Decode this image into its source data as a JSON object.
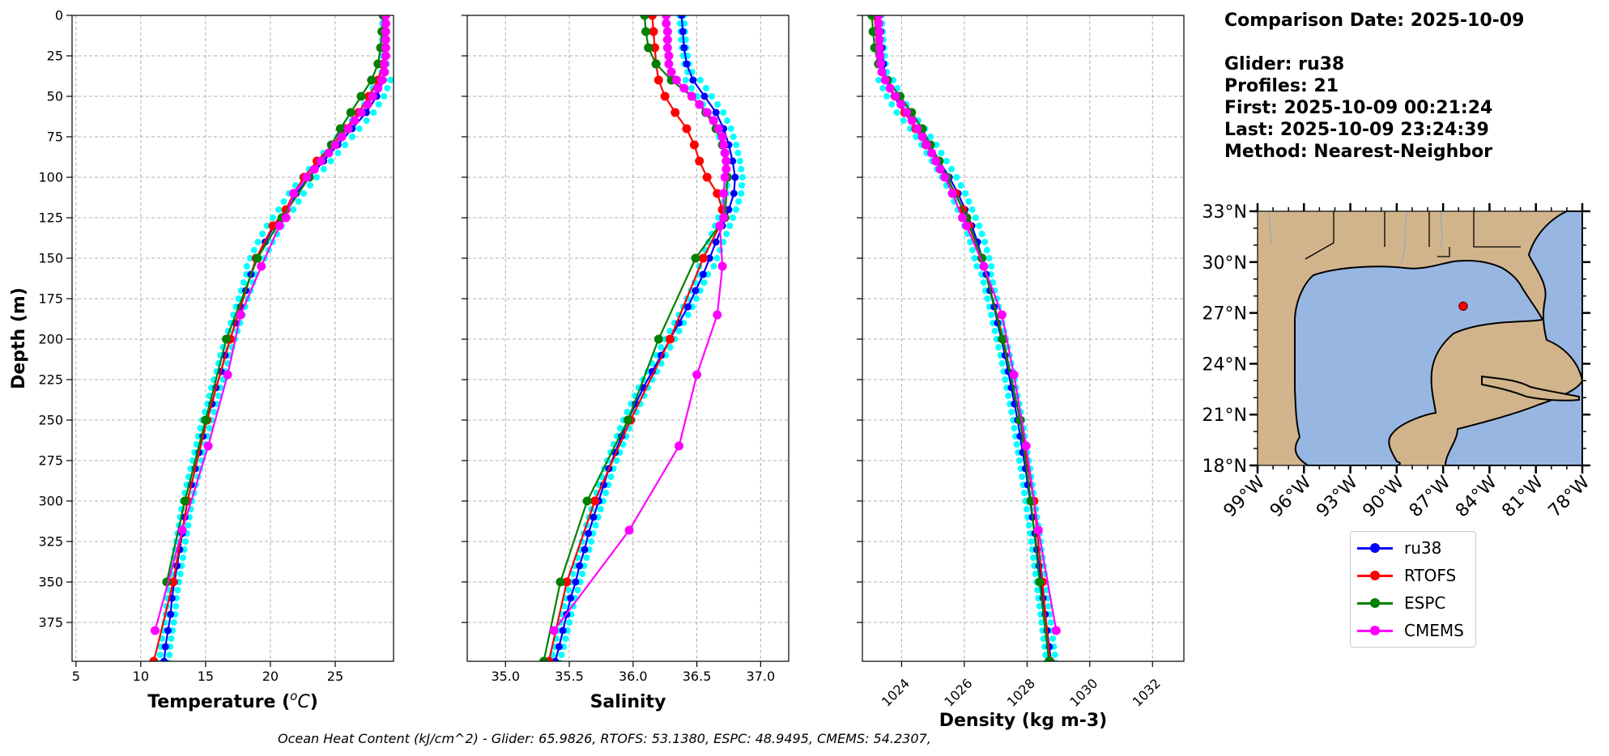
{
  "chart_data": [
    {
      "type": "line",
      "xlabel": "Temperature (",
      "xlabel_unit": "C",
      "xlabel_unit_super": "o",
      "xlabel_tail": ")",
      "ylabel": "Depth (m)",
      "xlim": [
        4.7,
        29.5
      ],
      "ylim": [
        399,
        0
      ],
      "xticks": [
        5,
        10,
        15,
        20,
        25
      ],
      "yticks": [
        0,
        25,
        50,
        75,
        100,
        125,
        150,
        175,
        200,
        225,
        250,
        275,
        300,
        325,
        350,
        375
      ],
      "grid": true,
      "series": [
        {
          "name": "ru38",
          "color": "#0000ff",
          "depth": [
            0,
            10,
            20,
            30,
            40,
            50,
            60,
            70,
            80,
            90,
            100,
            110,
            120,
            130,
            140,
            150,
            160,
            170,
            180,
            190,
            200,
            210,
            220,
            230,
            240,
            250,
            260,
            270,
            280,
            290,
            300,
            310,
            320,
            330,
            340,
            350,
            360,
            370,
            380,
            390,
            399
          ],
          "values": [
            28.8,
            28.8,
            28.8,
            28.8,
            28.7,
            28.2,
            27.4,
            26.3,
            25.2,
            24.1,
            23.0,
            22.0,
            21.2,
            20.3,
            19.6,
            19.0,
            18.5,
            18.1,
            17.7,
            17.3,
            16.9,
            16.5,
            16.2,
            15.8,
            15.5,
            15.1,
            14.8,
            14.5,
            14.2,
            13.9,
            13.6,
            13.4,
            13.2,
            13.0,
            12.8,
            12.6,
            12.4,
            12.3,
            12.1,
            11.9,
            11.8
          ]
        },
        {
          "name": "RTOFS",
          "color": "#ff0000",
          "depth": [
            0,
            10,
            20,
            30,
            40,
            50,
            60,
            70,
            80,
            90,
            100,
            110,
            120,
            130,
            150,
            200,
            250,
            300,
            350,
            399
          ],
          "values": [
            28.8,
            28.8,
            28.8,
            28.7,
            28.3,
            27.6,
            26.8,
            25.8,
            24.8,
            23.6,
            22.6,
            21.8,
            21.2,
            20.2,
            18.9,
            16.9,
            15.1,
            13.6,
            12.5,
            11.0
          ]
        },
        {
          "name": "ESPC",
          "color": "#008000",
          "depth": [
            0,
            10,
            20,
            30,
            40,
            50,
            60,
            70,
            80,
            90,
            100,
            125,
            150,
            200,
            250,
            300,
            350
          ],
          "values": [
            28.7,
            28.6,
            28.5,
            28.3,
            27.8,
            27.0,
            26.2,
            25.4,
            24.7,
            23.9,
            23.0,
            20.9,
            19.0,
            16.6,
            15.0,
            13.4,
            12.0
          ]
        },
        {
          "name": "CMEMS",
          "color": "#ff00ff",
          "depth": [
            0,
            5,
            10,
            15,
            20,
            25,
            30,
            35,
            40,
            45,
            50,
            55,
            60,
            65,
            70,
            75,
            80,
            85,
            90,
            95,
            100,
            110,
            125,
            130,
            155,
            185,
            222,
            266,
            318,
            380
          ],
          "values": [
            28.9,
            28.9,
            28.9,
            28.9,
            28.9,
            28.9,
            28.8,
            28.8,
            28.6,
            28.3,
            27.9,
            27.5,
            27.0,
            26.5,
            26.0,
            25.5,
            25.0,
            24.5,
            23.9,
            23.4,
            22.8,
            21.8,
            21.2,
            20.7,
            19.3,
            17.7,
            16.7,
            15.2,
            13.2,
            11.1
          ]
        }
      ]
    },
    {
      "type": "line",
      "xlabel": "Salinity",
      "xlim": [
        34.7,
        37.22
      ],
      "ylim": [
        399,
        0
      ],
      "xticks": [
        35.0,
        35.5,
        36.0,
        36.5,
        37.0
      ],
      "xtick_labels": [
        "35.0",
        "35.5",
        "36.0",
        "36.5",
        "37.0"
      ],
      "grid": true,
      "series": [
        {
          "name": "ru38",
          "color": "#0000ff",
          "depth": [
            0,
            10,
            20,
            30,
            40,
            50,
            60,
            70,
            80,
            90,
            100,
            110,
            120,
            130,
            140,
            150,
            160,
            170,
            180,
            190,
            200,
            210,
            220,
            230,
            240,
            250,
            260,
            270,
            280,
            290,
            300,
            310,
            320,
            330,
            340,
            350,
            360,
            370,
            380,
            390,
            399
          ],
          "values": [
            36.38,
            36.39,
            36.4,
            36.42,
            36.47,
            36.56,
            36.65,
            36.71,
            36.75,
            36.78,
            36.8,
            36.79,
            36.75,
            36.7,
            36.65,
            36.6,
            36.55,
            36.49,
            36.43,
            36.36,
            36.29,
            36.22,
            36.15,
            36.08,
            36.02,
            35.96,
            35.91,
            35.86,
            35.81,
            35.77,
            35.73,
            35.69,
            35.65,
            35.62,
            35.58,
            35.55,
            35.51,
            35.48,
            35.45,
            35.42,
            35.39
          ]
        },
        {
          "name": "RTOFS",
          "color": "#ff0000",
          "depth": [
            0,
            10,
            20,
            30,
            40,
            50,
            60,
            70,
            80,
            90,
            100,
            110,
            120,
            130,
            150,
            200,
            250,
            300,
            350,
            399
          ],
          "values": [
            36.15,
            36.16,
            36.17,
            36.18,
            36.2,
            36.25,
            36.33,
            36.42,
            36.48,
            36.52,
            36.58,
            36.66,
            36.7,
            36.68,
            36.55,
            36.29,
            35.98,
            35.7,
            35.48,
            35.34
          ]
        },
        {
          "name": "ESPC",
          "color": "#008000",
          "depth": [
            0,
            10,
            20,
            30,
            40,
            50,
            60,
            70,
            80,
            90,
            100,
            125,
            150,
            200,
            250,
            300,
            350,
            399
          ],
          "values": [
            36.09,
            36.1,
            36.12,
            36.18,
            36.3,
            36.46,
            36.57,
            36.65,
            36.7,
            36.73,
            36.74,
            36.72,
            36.49,
            36.2,
            35.96,
            35.64,
            35.43,
            35.3
          ]
        },
        {
          "name": "CMEMS",
          "color": "#ff00ff",
          "depth": [
            0,
            5,
            10,
            15,
            20,
            25,
            30,
            35,
            40,
            45,
            50,
            55,
            60,
            65,
            70,
            75,
            80,
            85,
            90,
            95,
            100,
            110,
            125,
            130,
            155,
            185,
            222,
            266,
            318,
            380
          ],
          "values": [
            36.26,
            36.26,
            36.27,
            36.27,
            36.27,
            36.28,
            36.28,
            36.3,
            36.34,
            36.4,
            36.46,
            36.52,
            36.58,
            36.63,
            36.67,
            36.7,
            36.71,
            36.72,
            36.73,
            36.73,
            36.72,
            36.71,
            36.71,
            36.68,
            36.7,
            36.66,
            36.5,
            36.36,
            35.97,
            35.38
          ]
        }
      ]
    },
    {
      "type": "line",
      "xlabel": "Density (kg m-3)",
      "xlim": [
        1022.75,
        1033.0
      ],
      "ylim": [
        399,
        0
      ],
      "xticks": [
        1024,
        1026,
        1028,
        1030,
        1032
      ],
      "xtick_labels": [
        "1024",
        "1026",
        "1028",
        "1030",
        "1032"
      ],
      "grid": true,
      "series": [
        {
          "name": "ru38",
          "color": "#0000ff",
          "depth": [
            0,
            10,
            20,
            30,
            40,
            50,
            60,
            70,
            80,
            90,
            100,
            110,
            120,
            130,
            140,
            150,
            160,
            170,
            180,
            190,
            200,
            210,
            220,
            230,
            240,
            250,
            260,
            270,
            280,
            290,
            300,
            310,
            320,
            330,
            340,
            350,
            360,
            370,
            380,
            390,
            399
          ],
          "values": [
            1023.29,
            1023.33,
            1023.37,
            1023.42,
            1023.5,
            1023.76,
            1024.08,
            1024.51,
            1024.87,
            1025.2,
            1025.52,
            1025.8,
            1026.02,
            1026.24,
            1026.42,
            1026.56,
            1026.7,
            1026.82,
            1026.95,
            1027.06,
            1027.18,
            1027.3,
            1027.4,
            1027.5,
            1027.6,
            1027.7,
            1027.78,
            1027.86,
            1027.95,
            1028.02,
            1028.1,
            1028.17,
            1028.25,
            1028.31,
            1028.38,
            1028.45,
            1028.51,
            1028.58,
            1028.64,
            1028.71,
            1028.76
          ]
        },
        {
          "name": "RTOFS",
          "color": "#ff0000",
          "depth": [
            0,
            10,
            20,
            30,
            40,
            50,
            60,
            70,
            80,
            90,
            100,
            110,
            120,
            130,
            150,
            200,
            250,
            300,
            350,
            399
          ],
          "values": [
            1023.14,
            1023.18,
            1023.22,
            1023.3,
            1023.5,
            1023.8,
            1024.1,
            1024.45,
            1024.78,
            1025.12,
            1025.42,
            1025.72,
            1025.95,
            1026.15,
            1026.56,
            1027.24,
            1027.78,
            1028.22,
            1028.49,
            1028.73
          ]
        },
        {
          "name": "ESPC",
          "color": "#008000",
          "depth": [
            0,
            10,
            20,
            30,
            40,
            50,
            60,
            70,
            80,
            90,
            100,
            125,
            150,
            200,
            250,
            300,
            350,
            399
          ],
          "values": [
            1023.05,
            1023.09,
            1023.14,
            1023.26,
            1023.55,
            1023.95,
            1024.32,
            1024.66,
            1024.92,
            1025.2,
            1025.45,
            1026.08,
            1026.56,
            1027.22,
            1027.78,
            1028.12,
            1028.4,
            1028.7
          ]
        },
        {
          "name": "CMEMS",
          "color": "#ff00ff",
          "depth": [
            0,
            5,
            10,
            15,
            20,
            25,
            30,
            35,
            40,
            45,
            50,
            55,
            60,
            65,
            70,
            75,
            80,
            85,
            90,
            95,
            100,
            110,
            125,
            130,
            155,
            185,
            222,
            266,
            318,
            380
          ],
          "values": [
            1023.27,
            1023.27,
            1023.28,
            1023.29,
            1023.3,
            1023.31,
            1023.33,
            1023.37,
            1023.48,
            1023.63,
            1023.81,
            1023.98,
            1024.16,
            1024.33,
            1024.5,
            1024.66,
            1024.8,
            1024.96,
            1025.09,
            1025.23,
            1025.38,
            1025.62,
            1025.94,
            1026.07,
            1026.62,
            1027.2,
            1027.58,
            1027.97,
            1028.36,
            1028.93
          ]
        }
      ]
    }
  ],
  "info": {
    "comparison_date": "Comparison Date: 2025-10-09",
    "glider": "Glider: ru38",
    "profiles": "Profiles: 21",
    "first": "First: 2025-10-09 00:21:24",
    "last": "Last: 2025-10-09 23:24:39",
    "method": "Method: Nearest-Neighbor"
  },
  "map": {
    "lat_labels": [
      "33°N",
      "30°N",
      "27°N",
      "24°N",
      "21°N",
      "18°N"
    ],
    "lon_labels": [
      "99°W",
      "96°W",
      "93°W",
      "90°W",
      "87°W",
      "84°W",
      "81°W",
      "78°W"
    ],
    "land_color": "#d2b48c",
    "ocean_color": "#98b6e2",
    "glider_position": {
      "lat": 27.4,
      "lon": -85.7
    }
  },
  "legend": {
    "items": [
      {
        "label": "ru38",
        "color": "#0000ff"
      },
      {
        "label": "RTOFS",
        "color": "#ff0000"
      },
      {
        "label": "ESPC",
        "color": "#008000"
      },
      {
        "label": "CMEMS",
        "color": "#ff00ff"
      }
    ]
  },
  "footer": {
    "ohc_text": "Ocean Heat Content (kJ/cm^2) - Glider: 65.9826,  RTOFS: 53.1380,  ESPC: 48.9495,  CMEMS: 54.2307,"
  }
}
